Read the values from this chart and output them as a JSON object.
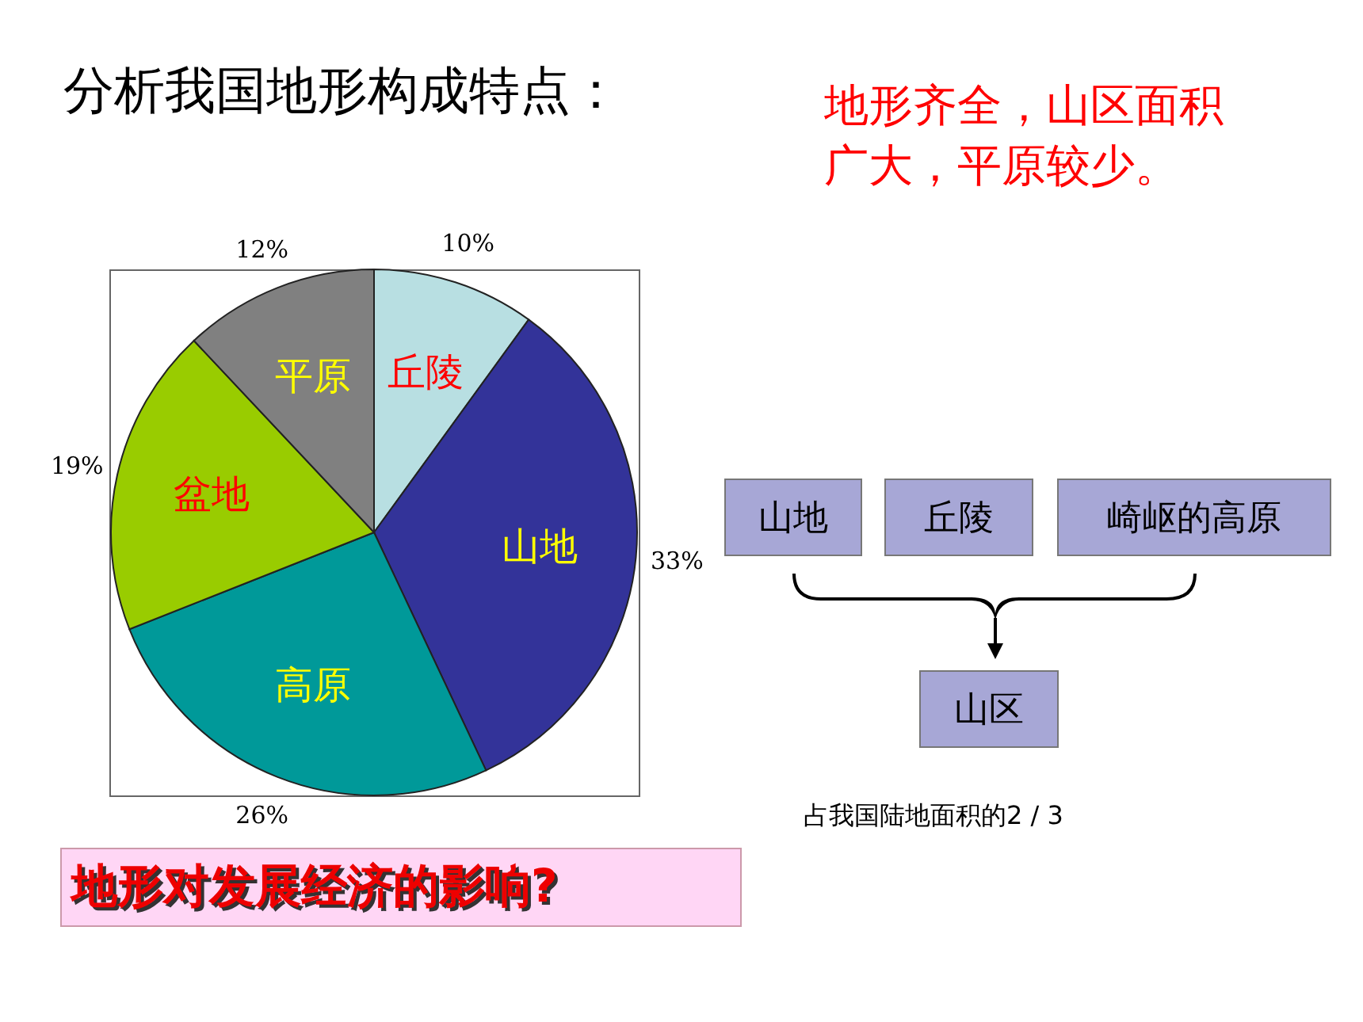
{
  "chart_data": {
    "type": "pie",
    "title": "分析我国地形构成特点：",
    "categories": [
      "丘陵",
      "山地",
      "高原",
      "盆地",
      "平原"
    ],
    "values": [
      10,
      33,
      26,
      19,
      12
    ],
    "value_labels": [
      "10%",
      "33%",
      "26%",
      "19%",
      "12%"
    ],
    "colors": [
      "#b8dfe2",
      "#333399",
      "#009999",
      "#99cc00",
      "#808080"
    ],
    "legend": false,
    "annotations": [
      "地形齐全，山区面积广大，平原较少。",
      "山地",
      "丘陵",
      "崎岖的高原",
      "山区",
      "占我国陆地面积的2 / 3",
      "地形对发展经济的影响?"
    ]
  }
}
